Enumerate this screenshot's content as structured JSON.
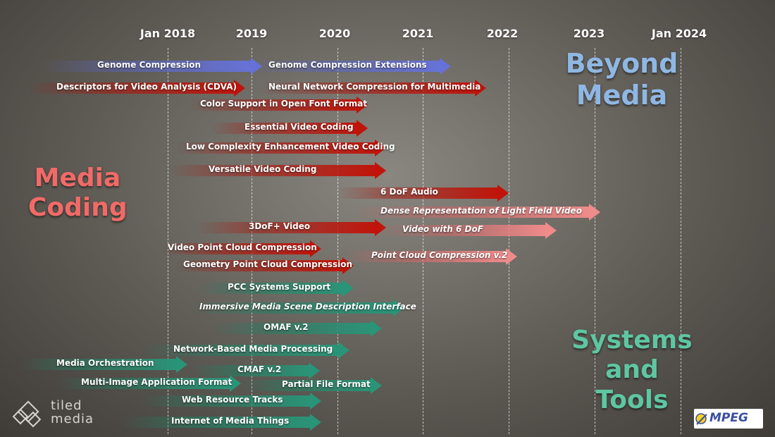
{
  "timeline": {
    "years": [
      "Jan 2018",
      "2019",
      "2020",
      "2021",
      "2022",
      "2023",
      "Jan 2024"
    ]
  },
  "categories": {
    "media_coding": [
      "Media",
      "Coding"
    ],
    "beyond_media": [
      "Beyond",
      "Media"
    ],
    "systems_tools": [
      "Systems",
      "and Tools"
    ]
  },
  "arrows": [
    {
      "label": "Genome Compression",
      "color": "#6672d8",
      "style": "normal"
    },
    {
      "label": "Genome Compression Extensions",
      "color": "#6672d8",
      "style": "normal"
    },
    {
      "label": "Descriptors for Video Analysis (CDVA)",
      "color": "#c0140a",
      "style": "normal"
    },
    {
      "label": "Neural Network Compression for Multimedia",
      "color": "#c0140a",
      "style": "normal"
    },
    {
      "label": "Color Support in Open Font Format",
      "color": "#c0140a",
      "style": "normal"
    },
    {
      "label": "Essential Video Coding",
      "color": "#c0140a",
      "style": "normal"
    },
    {
      "label": "Low Complexity Enhancement Video Coding",
      "color": "#c0140a",
      "style": "normal"
    },
    {
      "label": "Versatile Video Coding",
      "color": "#c0140a",
      "style": "normal"
    },
    {
      "label": "6 DoF Audio",
      "color": "#c0140a",
      "style": "normal"
    },
    {
      "label": "Dense Representation of Light Field Video",
      "color": "#ef8b8b",
      "style": "italic"
    },
    {
      "label": "3DoF+ Video",
      "color": "#c0140a",
      "style": "normal"
    },
    {
      "label": "Video with 6 DoF",
      "color": "#ef8b8b",
      "style": "italic"
    },
    {
      "label": "Video Point Cloud Compression",
      "color": "#c0140a",
      "style": "normal"
    },
    {
      "label": "Point Cloud Compression v.2",
      "color": "#ef8b8b",
      "style": "italic"
    },
    {
      "label": "Geometry Point Cloud Compression",
      "color": "#c0140a",
      "style": "normal"
    },
    {
      "label": "PCC Systems Support",
      "color": "#2a9478",
      "style": "normal"
    },
    {
      "label": "Immersive Media Scene Description  Interface",
      "color": "#2a9478",
      "style": "italic"
    },
    {
      "label": "OMAF v.2",
      "color": "#2a9478",
      "style": "normal"
    },
    {
      "label": "Network-Based Media Processing",
      "color": "#2a9478",
      "style": "normal"
    },
    {
      "label": "Media Orchestration",
      "color": "#2a9478",
      "style": "normal"
    },
    {
      "label": "CMAF v.2",
      "color": "#2a9478",
      "style": "normal"
    },
    {
      "label": "Multi-Image Application Format",
      "color": "#2a9478",
      "style": "normal"
    },
    {
      "label": "Partial File Format",
      "color": "#2a9478",
      "style": "normal"
    },
    {
      "label": "Web Resource Tracks",
      "color": "#2a9478",
      "style": "normal"
    },
    {
      "label": "Internet of Media Things",
      "color": "#2a9478",
      "style": "normal"
    }
  ],
  "logos": {
    "tiled": [
      "tiled",
      "media"
    ],
    "mpeg": "MPEG"
  }
}
